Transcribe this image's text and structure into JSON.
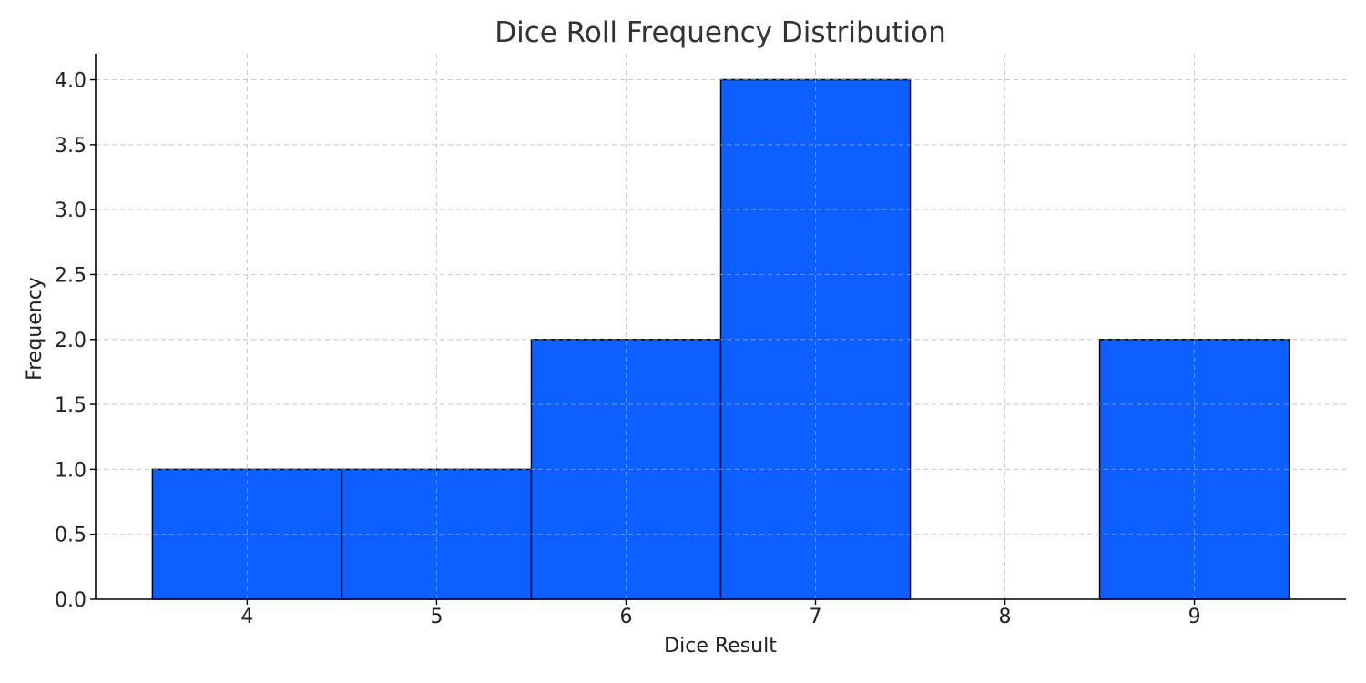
{
  "chart_data": {
    "type": "bar",
    "title": "Dice Roll Frequency Distribution",
    "xlabel": "Dice Result",
    "ylabel": "Frequency",
    "categories": [
      "4",
      "5",
      "6",
      "7",
      "8",
      "9"
    ],
    "x": [
      4,
      5,
      6,
      7,
      8,
      9
    ],
    "values": [
      1,
      1,
      2,
      4,
      0,
      2
    ],
    "xlim": [
      3.2,
      9.8
    ],
    "ylim": [
      0,
      4.2
    ],
    "yticks": [
      0.0,
      0.5,
      1.0,
      1.5,
      2.0,
      2.5,
      3.0,
      3.5,
      4.0
    ],
    "ytick_labels": [
      "0.0",
      "0.5",
      "1.0",
      "1.5",
      "2.0",
      "2.5",
      "3.0",
      "3.5",
      "4.0"
    ],
    "xtick_labels": [
      "4",
      "5",
      "6",
      "7",
      "8",
      "9"
    ],
    "bar_width": 1.0,
    "bar_color": "#0d5fff",
    "edge_color": "#000000",
    "grid": true,
    "legend": null
  }
}
